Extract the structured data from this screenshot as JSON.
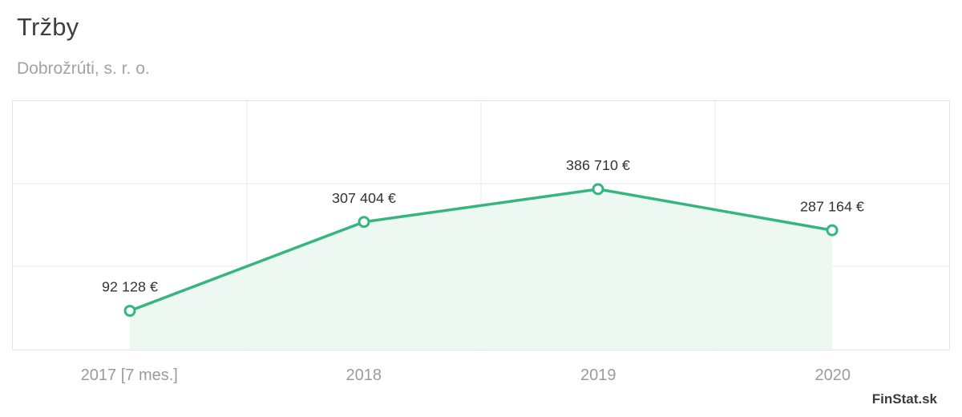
{
  "header": {
    "title": "Tržby",
    "subtitle": "Dobrožrúti, s. r. o."
  },
  "watermark": "FinStat.sk",
  "colors": {
    "line": "#36b57f",
    "area_fill": "#eef8f2",
    "marker_fill": "#ffffff",
    "grid": "#e8e8e8",
    "border": "#e4e4e4",
    "value_label": "#333333",
    "axis_label": "#9b9b9b"
  },
  "chart_data": {
    "type": "area",
    "title": "Tržby",
    "subtitle": "Dobrožrúti, s. r. o.",
    "categories": [
      "2017 [7 mes.]",
      "2018",
      "2019",
      "2020"
    ],
    "values": [
      92128,
      307404,
      386710,
      287164
    ],
    "value_labels": [
      "92 128 €",
      "307 404 €",
      "386 710 €",
      "287 164 €"
    ],
    "ylabel": "",
    "xlabel": "",
    "ylim": [
      0,
      600000
    ],
    "y_gridlines": [
      200000,
      400000
    ],
    "grid": true,
    "legend": false
  }
}
